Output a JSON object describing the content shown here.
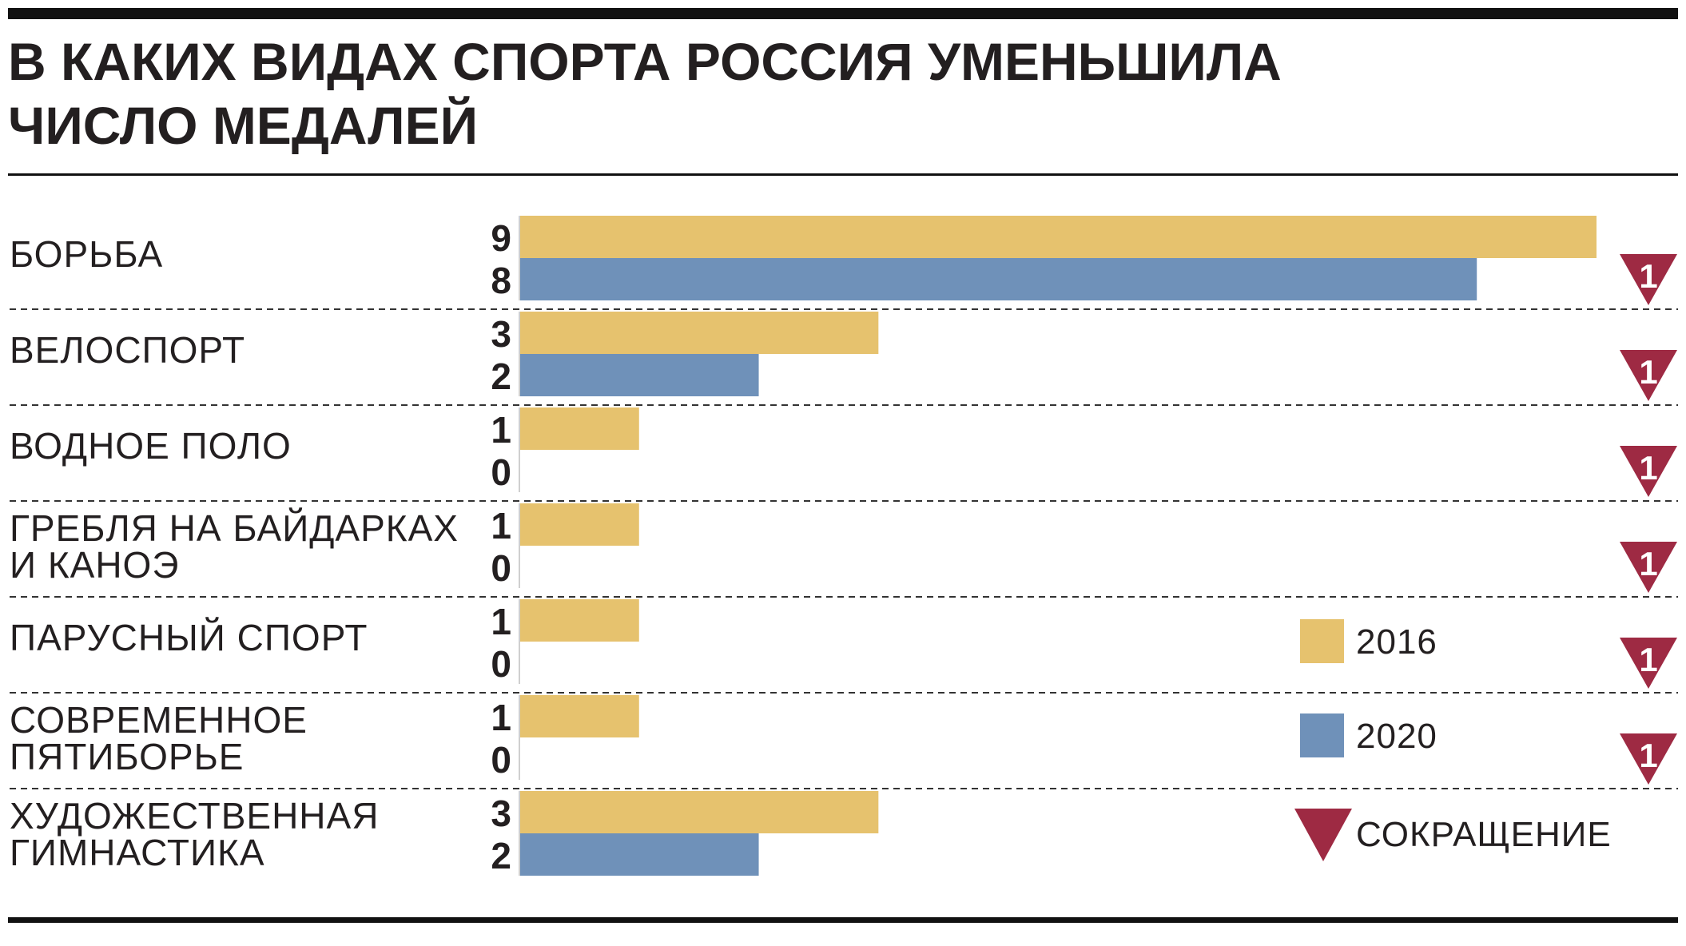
{
  "title_lines": [
    "В КАКИХ ВИДАХ СПОРТА РОССИЯ УМЕНЬШИЛА",
    "ЧИСЛО МЕДАЛЕЙ"
  ],
  "colors": {
    "series_2016": "#e6c26e",
    "series_2020": "#6f91b9",
    "decrease": "#9e2a43",
    "text": "#231f20",
    "rule": "#111111"
  },
  "legend": {
    "items": [
      {
        "label": "2016",
        "color": "#e6c26e"
      },
      {
        "label": "2020",
        "color": "#6f91b9"
      }
    ],
    "decrease_label": "СОКРАЩЕНИЕ"
  },
  "chart_data": {
    "type": "bar",
    "orientation": "horizontal",
    "title": "В КАКИХ ВИДАХ СПОРТА РОССИЯ УМЕНЬШИЛА ЧИСЛО МЕДАЛЕЙ",
    "categories": [
      [
        "БОРЬБА"
      ],
      [
        "ВЕЛОСПОРТ"
      ],
      [
        "ВОДНОЕ ПОЛО"
      ],
      [
        "ГРЕБЛЯ НА БАЙДАРКАХ",
        "И КАНОЭ"
      ],
      [
        "ПАРУСНЫЙ СПОРТ"
      ],
      [
        "СОВРЕМЕННОЕ",
        "ПЯТИБОРЬЕ"
      ],
      [
        "ХУДОЖЕСТВЕННАЯ",
        "ГИМНАСТИКА"
      ]
    ],
    "series": [
      {
        "name": "2016",
        "values": [
          9,
          3,
          1,
          1,
          1,
          1,
          3
        ]
      },
      {
        "name": "2020",
        "values": [
          8,
          2,
          0,
          0,
          0,
          0,
          2
        ]
      }
    ],
    "decrease": [
      1,
      1,
      1,
      1,
      1,
      1,
      null
    ],
    "xlim": [
      0,
      9
    ],
    "grid": false,
    "legend_position": "right"
  }
}
